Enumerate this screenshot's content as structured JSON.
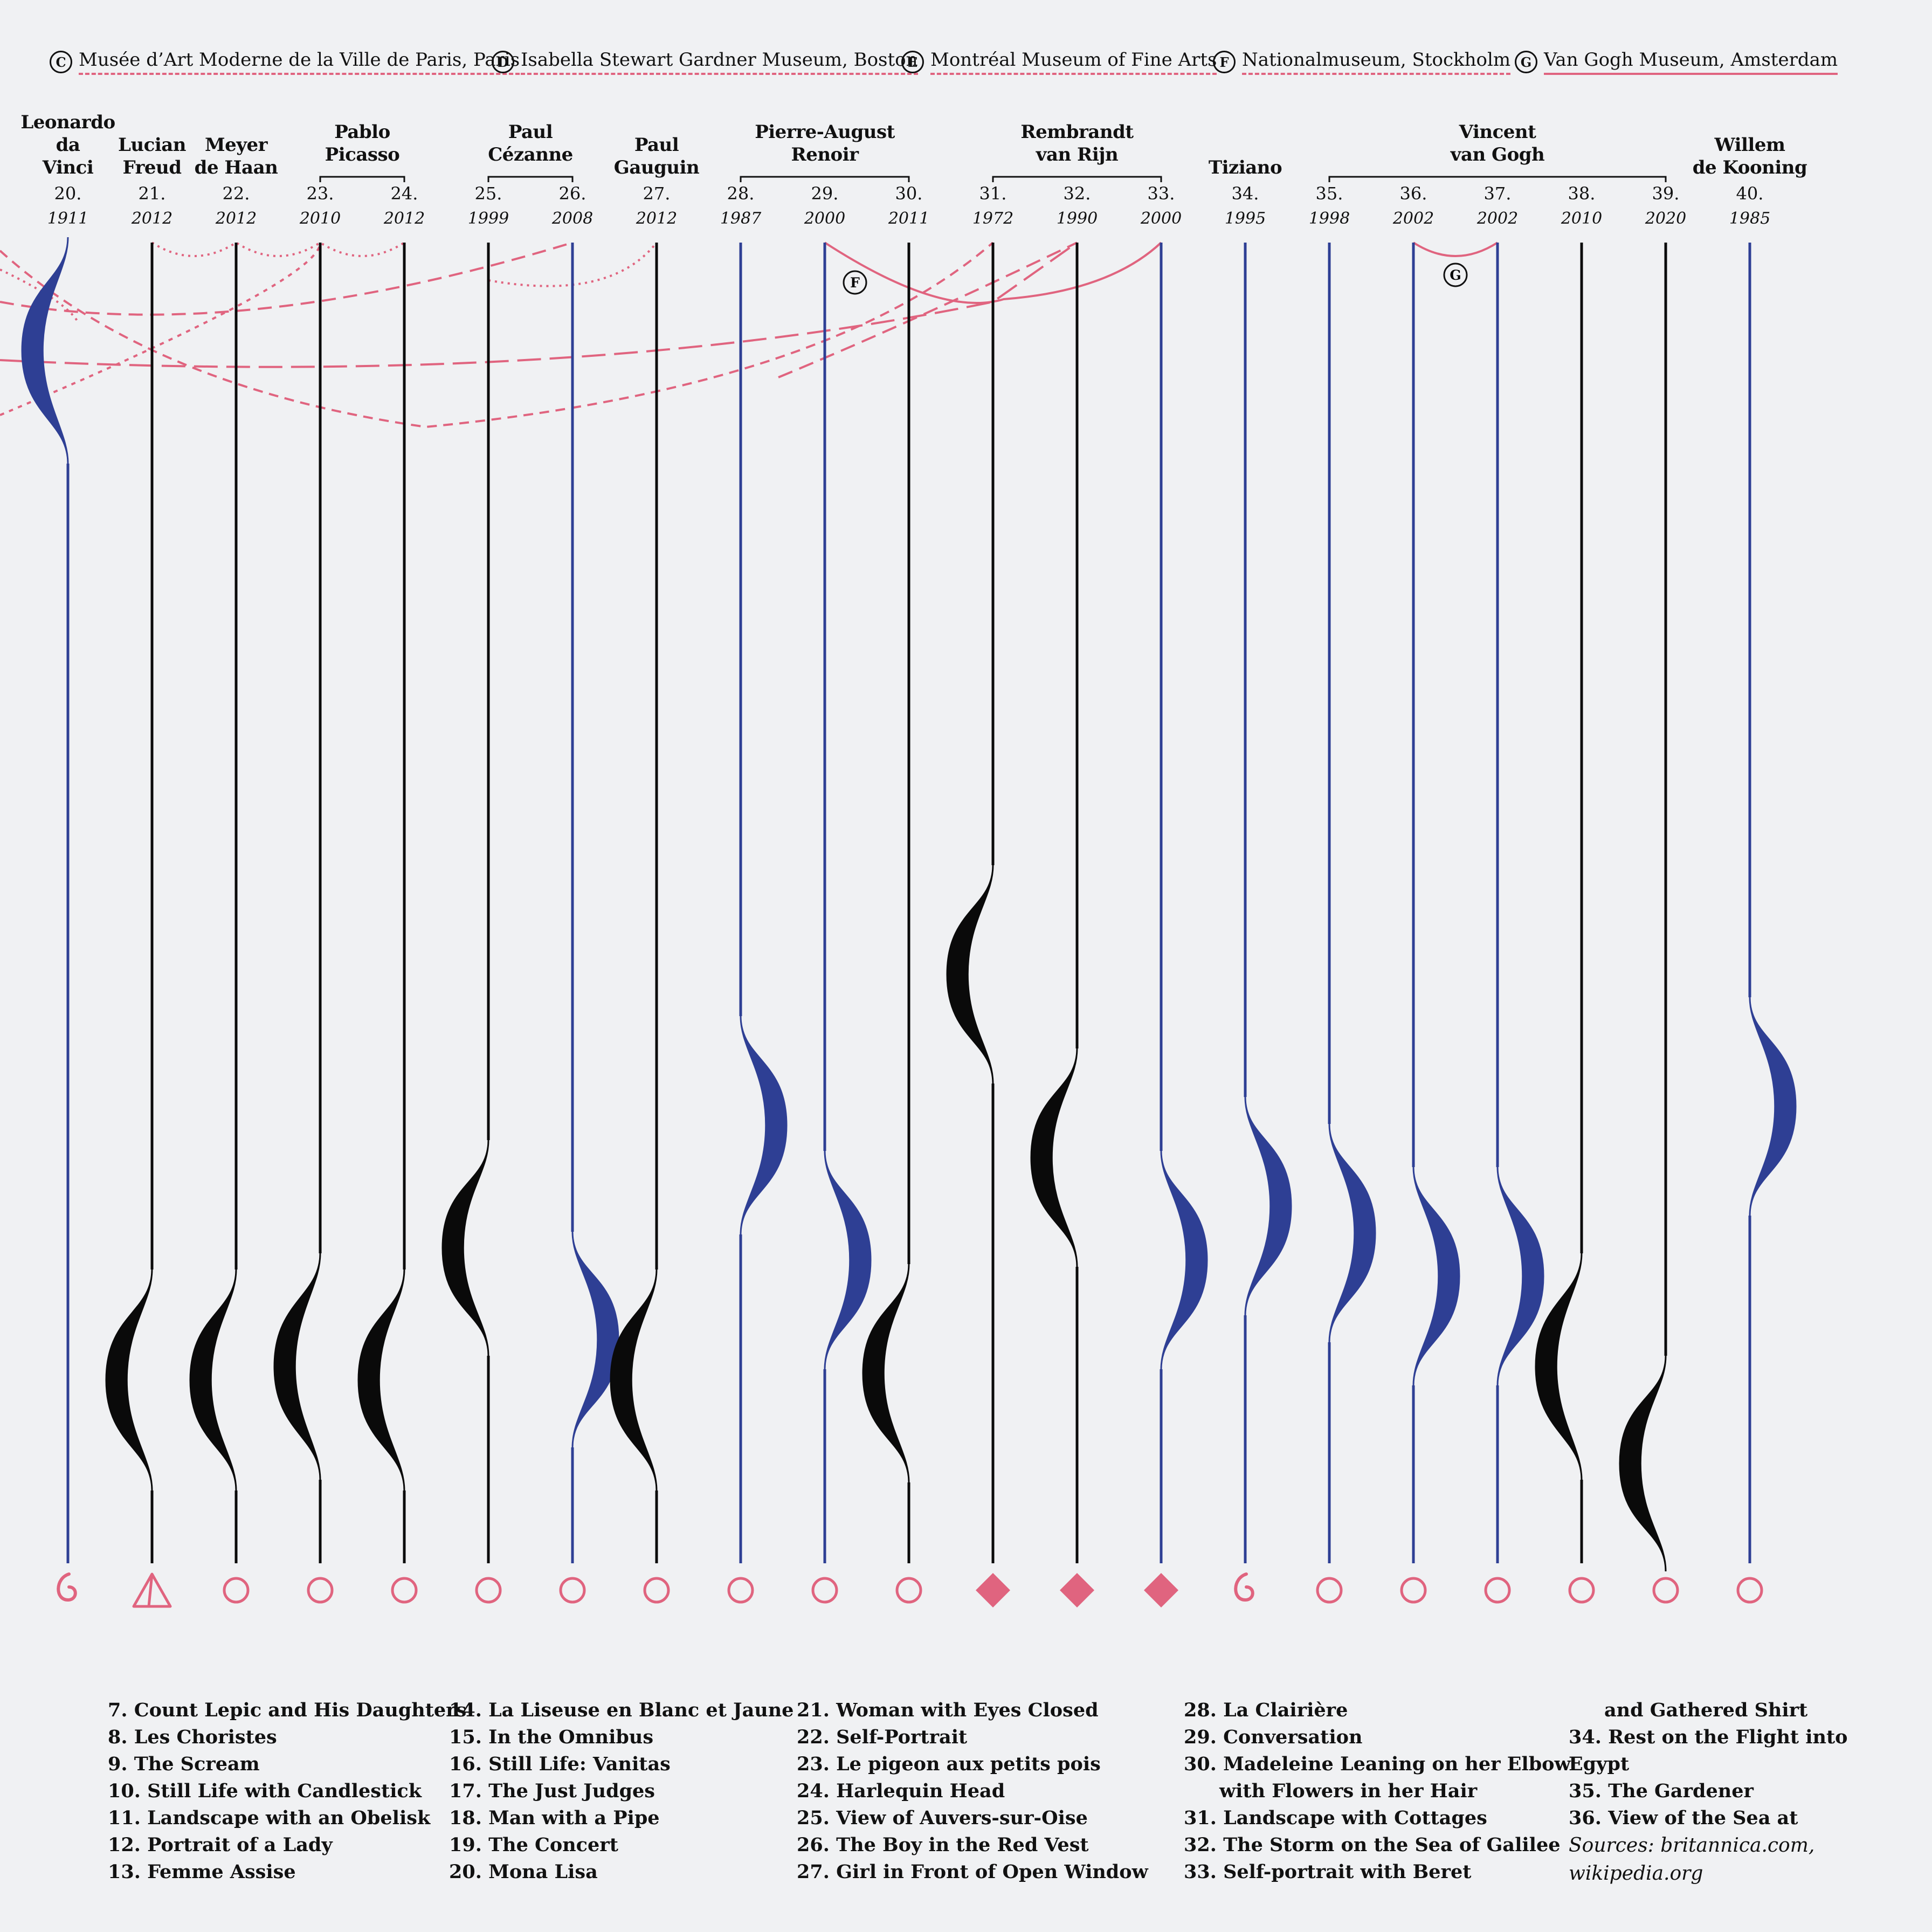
{
  "legend": [
    {
      "letter": "C",
      "label": "Musée d’Art Moderne de la Ville de Paris, Paris",
      "style": "dashed"
    },
    {
      "letter": "D",
      "label": "Isabella Stewart Gardner Museum, Boston",
      "style": "dashed"
    },
    {
      "letter": "E",
      "label": "Montréal Museum of Fine Arts",
      "style": "dashed"
    },
    {
      "letter": "F",
      "label": "Nationalmuseum, Stockholm",
      "style": "dashed"
    },
    {
      "letter": "G",
      "label": "Van Gogh Museum, Amsterdam",
      "style": "solid"
    }
  ],
  "artists": [
    {
      "name": "Leonardo da Vinci",
      "lines": [
        "Leonardo",
        "da",
        "Vinci"
      ]
    },
    {
      "name": "Lucian Freud",
      "lines": [
        "Lucian",
        "Freud"
      ]
    },
    {
      "name": "Meyer de Haan",
      "lines": [
        "Meyer",
        "de Haan"
      ]
    },
    {
      "name": "Pablo Picasso",
      "lines": [
        "Pablo",
        "Picasso"
      ]
    },
    {
      "name": "Paul Cézanne",
      "lines": [
        "Paul",
        "Cézanne"
      ]
    },
    {
      "name": "Paul Gauguin",
      "lines": [
        "Paul",
        "Gauguin"
      ]
    },
    {
      "name": "Pierre-August Renoir",
      "lines": [
        "Pierre-August",
        "Renoir"
      ]
    },
    {
      "name": "Rembrandt van Rijn",
      "lines": [
        "Rembrandt",
        "van Rijn"
      ]
    },
    {
      "name": "Tiziano",
      "lines": [
        "Tiziano"
      ]
    },
    {
      "name": "Vincent van Gogh",
      "lines": [
        "Vincent",
        "van Gogh"
      ]
    },
    {
      "name": "Willem de Kooning",
      "lines": [
        "Willem",
        "de Kooning"
      ]
    }
  ],
  "paintings": [
    {
      "num": "20.",
      "year": "1911",
      "artist": "Leonardo da Vinci",
      "color": "blue",
      "marker": "spiral"
    },
    {
      "num": "21.",
      "year": "2012",
      "artist": "Lucian Freud",
      "color": "black",
      "marker": "triangle"
    },
    {
      "num": "22.",
      "year": "2012",
      "artist": "Meyer de Haan",
      "color": "black",
      "marker": "circle"
    },
    {
      "num": "23.",
      "year": "2010",
      "artist": "Pablo Picasso",
      "color": "black",
      "marker": "circle"
    },
    {
      "num": "24.",
      "year": "2012",
      "artist": "Pablo Picasso",
      "color": "black",
      "marker": "circle"
    },
    {
      "num": "25.",
      "year": "1999",
      "artist": "Paul Cézanne",
      "color": "black",
      "marker": "circle"
    },
    {
      "num": "26.",
      "year": "2008",
      "artist": "Paul Cézanne",
      "color": "blue",
      "marker": "circle"
    },
    {
      "num": "27.",
      "year": "2012",
      "artist": "Paul Gauguin",
      "color": "black",
      "marker": "circle"
    },
    {
      "num": "28.",
      "year": "1987",
      "artist": "Pierre-August Renoir",
      "color": "blue",
      "marker": "circle"
    },
    {
      "num": "29.",
      "year": "2000",
      "artist": "Pierre-August Renoir",
      "color": "blue",
      "marker": "circle"
    },
    {
      "num": "30.",
      "year": "2011",
      "artist": "Pierre-August Renoir",
      "color": "black",
      "marker": "circle"
    },
    {
      "num": "31.",
      "year": "1972",
      "artist": "Rembrandt van Rijn",
      "color": "black",
      "marker": "diamond"
    },
    {
      "num": "32.",
      "year": "1990",
      "artist": "Rembrandt van Rijn",
      "color": "black",
      "marker": "diamond"
    },
    {
      "num": "33.",
      "year": "2000",
      "artist": "Rembrandt van Rijn",
      "color": "blue",
      "marker": "diamond"
    },
    {
      "num": "34.",
      "year": "1995",
      "artist": "Tiziano",
      "color": "blue",
      "marker": "spiral"
    },
    {
      "num": "35.",
      "year": "1998",
      "artist": "Vincent van Gogh",
      "color": "blue",
      "marker": "circle"
    },
    {
      "num": "36.",
      "year": "2002",
      "artist": "Vincent van Gogh",
      "color": "blue",
      "marker": "circle"
    },
    {
      "num": "37.",
      "year": "2002",
      "artist": "Vincent van Gogh",
      "color": "blue",
      "marker": "circle"
    },
    {
      "num": "38.",
      "year": "2010",
      "artist": "Vincent van Gogh",
      "color": "black",
      "marker": "circle"
    },
    {
      "num": "39.",
      "year": "2020",
      "artist": "Vincent van Gogh",
      "color": "black",
      "marker": "circle"
    },
    {
      "num": "40.",
      "year": "1985",
      "artist": "Willem de Kooning",
      "color": "blue",
      "marker": "circle"
    }
  ],
  "museum_markers": [
    {
      "letter": "F"
    },
    {
      "letter": "G"
    }
  ],
  "title_columns": [
    [
      "7. Count Lepic and His Daughters",
      "8. Les Choristes",
      "9. The Scream",
      "10. Still Life with Candlestick",
      "11. Landscape with an Obelisk",
      "12. Portrait of a Lady",
      "13. Femme Assise"
    ],
    [
      "14. La Liseuse en Blanc et Jaune",
      "15. In the Omnibus",
      "16. Still Life: Vanitas",
      "17. The Just Judges",
      "18. Man with a Pipe",
      "19. The Concert",
      "20. Mona Lisa"
    ],
    [
      "21. Woman with Eyes Closed",
      "22. Self-Portrait",
      "23. Le pigeon aux petits pois",
      "24. Harlequin Head",
      "25. View of Auvers-sur-Oise",
      "26. The Boy in the Red Vest",
      "27. Girl in Front of Open Window"
    ],
    [
      "28. La Clairière",
      "29. Conversation",
      "30. Madeleine Leaning on her Elbow",
      "with Flowers in her Hair",
      "31. Landscape with Cottages",
      "32. The Storm on the Sea of Galilee",
      "33. Self-portrait with Beret"
    ],
    [
      "and Gathered Shirt",
      "34. Rest on the Flight into",
      "Egypt",
      "35. The Gardener",
      "36. View of the Sea at"
    ]
  ],
  "sources": [
    "Sources: britannica.com,",
    "wikipedia.org"
  ],
  "colors": {
    "blue": "#2e3f94",
    "black": "#0a0a0a",
    "pink": "#e0647f",
    "background": "#f0f1f3"
  }
}
